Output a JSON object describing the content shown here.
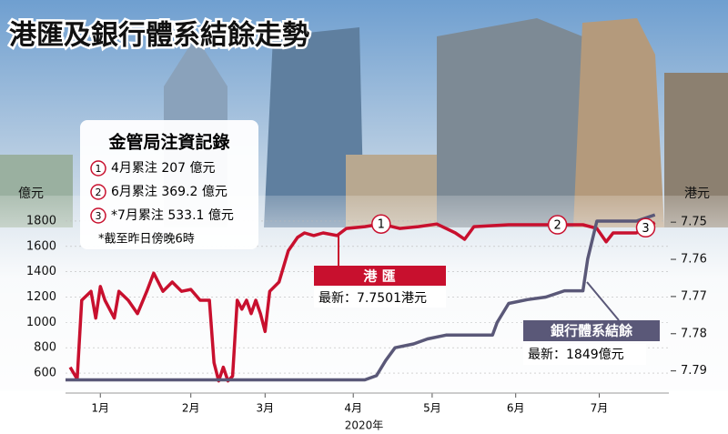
{
  "chart_data": {
    "type": "line",
    "title": "港匯及銀行體系結餘走勢",
    "y_label": "億元",
    "y2_label": "港元",
    "x_label": "2020年",
    "xlim": [
      0,
      130
    ],
    "xticks": [
      {
        "value": 7.5,
        "label": "1月"
      },
      {
        "value": 27,
        "label": "2月"
      },
      {
        "value": 43,
        "label": "3月"
      },
      {
        "value": 62,
        "label": "4月"
      },
      {
        "value": 79,
        "label": "5月"
      },
      {
        "value": 97,
        "label": "6月"
      },
      {
        "value": 115,
        "label": "7月"
      }
    ],
    "ylim": [
      500,
      1850
    ],
    "yticks": [
      600,
      800,
      1000,
      1200,
      1400,
      1600,
      1800
    ],
    "y2lim": [
      7.748,
      7.794
    ],
    "y2ticks": [
      7.75,
      7.76,
      7.77,
      7.78,
      7.79
    ],
    "y2_inverted": true,
    "grid": true,
    "series": [
      {
        "name": "港 匯",
        "latest": "最新：7.7501港元",
        "axis": "y2",
        "color": "#c8102e",
        "x": [
          1,
          2.5,
          3.5,
          5.5,
          6.5,
          7.5,
          8.5,
          10.5,
          11.5,
          13.5,
          15.5,
          17.5,
          19,
          21,
          23,
          25,
          27,
          29,
          31,
          32,
          33,
          34,
          35,
          36,
          37,
          38,
          39,
          40,
          41,
          42,
          43,
          44,
          46,
          48,
          50,
          51.5,
          53.5,
          55.5,
          58.5,
          60.5,
          64.5,
          68,
          72,
          76,
          80,
          84,
          86,
          88,
          95.5,
          103.5,
          111.5,
          114.5,
          116.5,
          118,
          121,
          123,
          127
        ],
        "values": [
          7.789,
          7.7922,
          7.771,
          7.7686,
          7.7758,
          7.7673,
          7.771,
          7.7758,
          7.7686,
          7.771,
          7.7746,
          7.7686,
          7.7637,
          7.7686,
          7.7661,
          7.7686,
          7.7681,
          7.771,
          7.771,
          7.7878,
          7.7927,
          7.789,
          7.7927,
          7.7914,
          7.771,
          7.7734,
          7.771,
          7.7746,
          7.771,
          7.7746,
          7.7794,
          7.7686,
          7.7661,
          7.7577,
          7.7541,
          7.7529,
          7.7536,
          7.7529,
          7.7536,
          7.7517,
          7.7512,
          7.7505,
          7.7517,
          7.7512,
          7.7505,
          7.7529,
          7.7546,
          7.7512,
          7.7507,
          7.7507,
          7.7507,
          7.7517,
          7.7553,
          7.7529,
          7.7529,
          7.7529,
          7.7501
        ]
      },
      {
        "name": "銀行體系結餘",
        "latest": "最新：1849億元",
        "axis": "y",
        "color": "#5a5878",
        "x": [
          0,
          64.5,
          67,
          69,
          71,
          75,
          78,
          82,
          92,
          93,
          95.5,
          99.5,
          103.5,
          107.5,
          111.5,
          112.5,
          114.5,
          123,
          127
        ],
        "values": [
          547,
          547,
          580,
          700,
          800,
          830,
          870,
          900,
          900,
          1000,
          1150,
          1180,
          1200,
          1250,
          1250,
          1500,
          1800,
          1800,
          1849
        ]
      }
    ],
    "injections": {
      "title": "金管局注資記錄",
      "items": [
        {
          "num": "1",
          "text": "4月累注 207 億元",
          "x": 68
        },
        {
          "num": "2",
          "text": "6月累注 369.2 億元",
          "x": 106
        },
        {
          "num": "3",
          "text": "*7月累注 533.1 億元",
          "x": 125
        }
      ],
      "note": "*截至昨日傍晚6時"
    }
  }
}
